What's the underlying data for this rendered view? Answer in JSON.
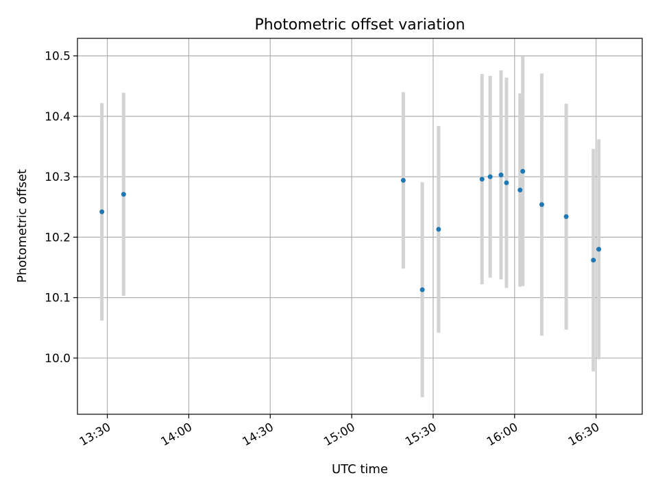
{
  "chart_data": {
    "type": "scatter",
    "title": "Photometric offset variation",
    "xlabel": "UTC time",
    "ylabel": "Photometric offset",
    "xlim": [
      "13:19",
      "16:47"
    ],
    "ylim": [
      9.907,
      10.529
    ],
    "x_ticks": [
      "13:30",
      "14:00",
      "14:30",
      "15:00",
      "15:30",
      "16:00",
      "16:30"
    ],
    "y_ticks": [
      "10.0",
      "10.1",
      "10.2",
      "10.3",
      "10.4",
      "10.5"
    ],
    "grid": true,
    "marker_color": "#1f77b4",
    "errorbar_color": "#d3d3d3",
    "points": [
      {
        "time": "13:28",
        "value": 10.242,
        "error": 0.18
      },
      {
        "time": "13:36",
        "value": 10.271,
        "error": 0.168
      },
      {
        "time": "15:19",
        "value": 10.294,
        "error": 0.146
      },
      {
        "time": "15:26",
        "value": 10.113,
        "error": 0.178
      },
      {
        "time": "15:32",
        "value": 10.213,
        "error": 0.171
      },
      {
        "time": "15:48",
        "value": 10.296,
        "error": 0.174
      },
      {
        "time": "15:51",
        "value": 10.3,
        "error": 0.167
      },
      {
        "time": "15:55",
        "value": 10.303,
        "error": 0.173
      },
      {
        "time": "15:57",
        "value": 10.29,
        "error": 0.174
      },
      {
        "time": "16:02",
        "value": 10.278,
        "error": 0.16
      },
      {
        "time": "16:03",
        "value": 10.309,
        "error": 0.19
      },
      {
        "time": "16:10",
        "value": 10.254,
        "error": 0.217
      },
      {
        "time": "16:19",
        "value": 10.234,
        "error": 0.187
      },
      {
        "time": "16:29",
        "value": 10.162,
        "error": 0.184
      },
      {
        "time": "16:31",
        "value": 10.18,
        "error": 0.182
      }
    ]
  }
}
